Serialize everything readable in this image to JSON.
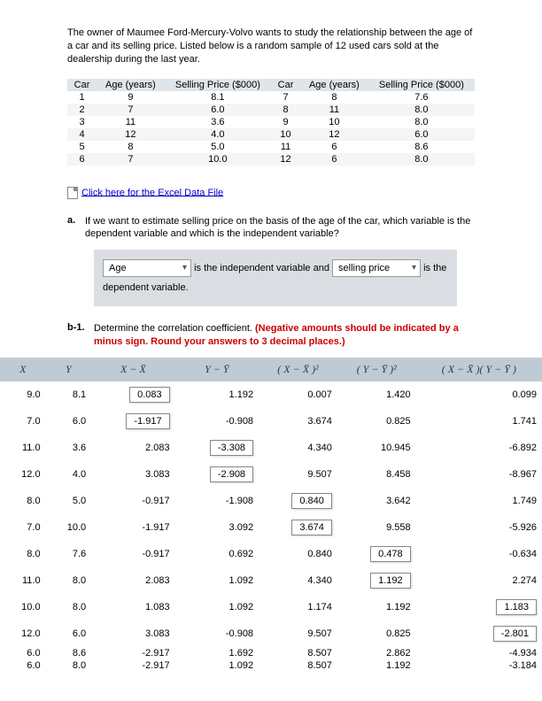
{
  "intro": "The owner of Maumee Ford-Mercury-Volvo wants to study the relationship between the age of a car and its selling price. Listed below is a random sample of 12 used cars sold at the dealership during the last year.",
  "data_table": {
    "headers": [
      "Car",
      "Age (years)",
      "Selling Price ($000)",
      "Car",
      "Age (years)",
      "Selling Price ($000)"
    ],
    "rows": [
      [
        "1",
        "9",
        "8.1",
        "7",
        "8",
        "7.6"
      ],
      [
        "2",
        "7",
        "6.0",
        "8",
        "11",
        "8.0"
      ],
      [
        "3",
        "11",
        "3.6",
        "9",
        "10",
        "8.0"
      ],
      [
        "4",
        "12",
        "4.0",
        "10",
        "12",
        "6.0"
      ],
      [
        "5",
        "8",
        "5.0",
        "11",
        "6",
        "8.6"
      ],
      [
        "6",
        "7",
        "10.0",
        "12",
        "6",
        "8.0"
      ]
    ]
  },
  "excel_link": "Click here for the Excel Data File",
  "qa": {
    "label": "a.",
    "text": "If we want to estimate selling price on the basis of the age of the car, which variable is the dependent variable and which is the independent variable?"
  },
  "answer": {
    "sel1": "Age",
    "mid1": "is the independent variable and",
    "sel2": "selling price",
    "end": "is the dependent variable."
  },
  "qb": {
    "label": "b-1.",
    "text": "Determine the correlation coefficient. ",
    "red": "(Negative amounts should be indicated by a minus sign. Round your answers to 3 decimal places.)"
  },
  "corr": {
    "headers": [
      "X",
      "Y",
      "X − X̄",
      "Y − Ȳ",
      "( X − X̄ )²",
      "( Y − Ȳ )²",
      "( X − X̄ )( Y − Ȳ )"
    ],
    "rows": [
      {
        "x": "9.0",
        "y": "8.1",
        "xd": "0.083",
        "xd_box": true,
        "yd": "1.192",
        "yd_box": false,
        "xd2": "0.007",
        "xd2_box": false,
        "yd2": "1.420",
        "yd2_box": false,
        "pr": "0.099",
        "pr_box": false
      },
      {
        "x": "7.0",
        "y": "6.0",
        "xd": "-1.917",
        "xd_box": true,
        "yd": "-0.908",
        "yd_box": false,
        "xd2": "3.674",
        "xd2_box": false,
        "yd2": "0.825",
        "yd2_box": false,
        "pr": "1.741",
        "pr_box": false
      },
      {
        "x": "11.0",
        "y": "3.6",
        "xd": "2.083",
        "xd_box": false,
        "yd": "-3.308",
        "yd_box": true,
        "xd2": "4.340",
        "xd2_box": false,
        "yd2": "10.945",
        "yd2_box": false,
        "pr": "-6.892",
        "pr_box": false
      },
      {
        "x": "12.0",
        "y": "4.0",
        "xd": "3.083",
        "xd_box": false,
        "yd": "-2.908",
        "yd_box": true,
        "xd2": "9.507",
        "xd2_box": false,
        "yd2": "8.458",
        "yd2_box": false,
        "pr": "-8.967",
        "pr_box": false
      },
      {
        "x": "8.0",
        "y": "5.0",
        "xd": "-0.917",
        "xd_box": false,
        "yd": "-1.908",
        "yd_box": false,
        "xd2": "0.840",
        "xd2_box": true,
        "yd2": "3.642",
        "yd2_box": false,
        "pr": "1.749",
        "pr_box": false
      },
      {
        "x": "7.0",
        "y": "10.0",
        "xd": "-1.917",
        "xd_box": false,
        "yd": "3.092",
        "yd_box": false,
        "xd2": "3.674",
        "xd2_box": true,
        "yd2": "9.558",
        "yd2_box": false,
        "pr": "-5.926",
        "pr_box": false
      },
      {
        "x": "8.0",
        "y": "7.6",
        "xd": "-0.917",
        "xd_box": false,
        "yd": "0.692",
        "yd_box": false,
        "xd2": "0.840",
        "xd2_box": false,
        "yd2": "0.478",
        "yd2_box": true,
        "pr": "-0.634",
        "pr_box": false
      },
      {
        "x": "11.0",
        "y": "8.0",
        "xd": "2.083",
        "xd_box": false,
        "yd": "1.092",
        "yd_box": false,
        "xd2": "4.340",
        "xd2_box": false,
        "yd2": "1.192",
        "yd2_box": true,
        "pr": "2.274",
        "pr_box": false
      },
      {
        "x": "10.0",
        "y": "8.0",
        "xd": "1.083",
        "xd_box": false,
        "yd": "1.092",
        "yd_box": false,
        "xd2": "1.174",
        "xd2_box": false,
        "yd2": "1.192",
        "yd2_box": false,
        "pr": "1.183",
        "pr_box": true
      },
      {
        "x": "12.0",
        "y": "6.0",
        "xd": "3.083",
        "xd_box": false,
        "yd": "-0.908",
        "yd_box": false,
        "xd2": "9.507",
        "xd2_box": false,
        "yd2": "0.825",
        "yd2_box": false,
        "pr": "-2.801",
        "pr_box": true
      },
      {
        "x": "6.0",
        "y": "8.6",
        "xd": "-2.917",
        "xd_box": false,
        "yd": "1.692",
        "yd_box": false,
        "xd2": "8.507",
        "xd2_box": false,
        "yd2": "2.862",
        "yd2_box": false,
        "pr": "-4.934",
        "pr_box": false,
        "tight": true
      },
      {
        "x": "6.0",
        "y": "8.0",
        "xd": "-2.917",
        "xd_box": false,
        "yd": "1.092",
        "yd_box": false,
        "xd2": "8.507",
        "xd2_box": false,
        "yd2": "1.192",
        "yd2_box": false,
        "pr": "-3.184",
        "pr_box": false,
        "tight": true
      }
    ]
  }
}
